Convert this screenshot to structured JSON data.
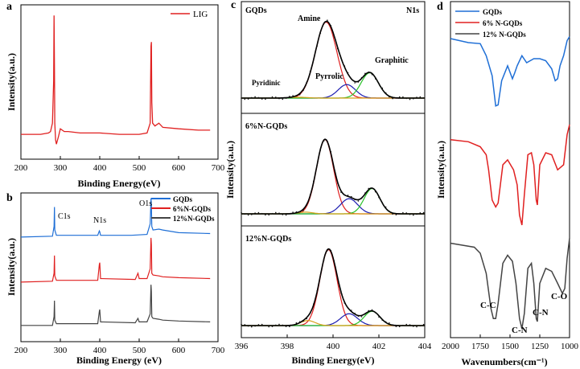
{
  "colors": {
    "red": "#e02020",
    "blue": "#1f6fd6",
    "black": "#1a1a1a",
    "gray": "#444444",
    "green": "#2bc22b",
    "navy": "#1c1cb0",
    "orange": "#d6a01a"
  },
  "chart_data": [
    {
      "panel": "a",
      "type": "line",
      "xlabel": "Binding Energy(eV)",
      "ylabel": "Intensity(a.u.)",
      "xlim": [
        200,
        700
      ],
      "xticks": [
        "200",
        "300",
        "400",
        "500",
        "600",
        "700"
      ],
      "legend": [
        "LIG"
      ],
      "legend_position": "top-right",
      "series": [
        {
          "name": "LIG",
          "color": "#e02020",
          "x": [
            200,
            250,
            270,
            275,
            280,
            283,
            284,
            285,
            286,
            288,
            290,
            295,
            300,
            310,
            320,
            350,
            380,
            400,
            450,
            500,
            520,
            528,
            530,
            531,
            532,
            534,
            540,
            550,
            560,
            600,
            650,
            680
          ],
          "y": [
            0.12,
            0.12,
            0.13,
            0.14,
            0.2,
            0.5,
            0.97,
            0.6,
            0.2,
            0.08,
            0.05,
            0.1,
            0.16,
            0.14,
            0.14,
            0.13,
            0.13,
            0.13,
            0.12,
            0.12,
            0.13,
            0.2,
            0.75,
            0.78,
            0.35,
            0.2,
            0.18,
            0.2,
            0.17,
            0.16,
            0.15,
            0.15
          ]
        }
      ]
    },
    {
      "panel": "b",
      "type": "line",
      "xlabel": "Binding Energy (eV)",
      "ylabel": "Intensity(a.u.)",
      "xlim": [
        200,
        700
      ],
      "xticks": [
        "200",
        "300",
        "400",
        "500",
        "600",
        "700"
      ],
      "annotations": [
        "C1s",
        "N1s",
        "O1s"
      ],
      "legend_position": "top-right",
      "series": [
        {
          "name": "GQDs",
          "color": "#1f6fd6",
          "offset": 2,
          "x": [
            200,
            280,
            284,
            285,
            286,
            290,
            300,
            395,
            399,
            400,
            402,
            480,
            520,
            528,
            530,
            531,
            532,
            535,
            550,
            560,
            600,
            680
          ],
          "y": [
            0,
            0.01,
            0.12,
            0.34,
            0.08,
            0.02,
            0.02,
            0.02,
            0.07,
            0.06,
            0.02,
            0.02,
            0.03,
            0.15,
            0.44,
            0.36,
            0.12,
            0.08,
            0.09,
            0.08,
            0.05,
            0.04
          ]
        },
        {
          "name": "6%N-GQDs",
          "color": "#e02020",
          "offset": 1,
          "x": [
            200,
            280,
            284,
            285,
            286,
            290,
            300,
            395,
            399,
            400,
            402,
            490,
            497,
            500,
            520,
            528,
            530,
            531,
            532,
            535,
            550,
            560,
            600,
            680
          ],
          "y": [
            0,
            0.01,
            0.1,
            0.3,
            0.07,
            0.02,
            0.02,
            0.02,
            0.2,
            0.22,
            0.04,
            0.03,
            0.1,
            0.04,
            0.04,
            0.15,
            0.5,
            0.42,
            0.1,
            0.08,
            0.07,
            0.06,
            0.05,
            0.04
          ]
        },
        {
          "name": "12%N-GQDs",
          "color": "#444444",
          "offset": 0,
          "x": [
            200,
            280,
            284,
            285,
            286,
            290,
            300,
            395,
            399,
            400,
            402,
            490,
            497,
            500,
            520,
            528,
            530,
            531,
            532,
            535,
            550,
            560,
            600,
            680
          ],
          "y": [
            0.02,
            0.02,
            0.12,
            0.3,
            0.08,
            0.04,
            0.04,
            0.04,
            0.18,
            0.2,
            0.06,
            0.05,
            0.1,
            0.06,
            0.06,
            0.15,
            0.48,
            0.4,
            0.12,
            0.1,
            0.09,
            0.08,
            0.07,
            0.06
          ]
        }
      ]
    },
    {
      "panel": "c",
      "type": "line",
      "xlabel": "Binding Energy(eV)",
      "ylabel": "Intensity(a.u.)",
      "xlim": [
        396,
        404
      ],
      "xticks": [
        "396",
        "398",
        "400",
        "402",
        "404"
      ],
      "subpanels": [
        {
          "title": "GQDs",
          "corner_label": "N1s",
          "peak_labels": [
            "Amine",
            "Pyridinic",
            "Pyrrolic",
            "Graphitic"
          ],
          "components": [
            {
              "color": "#e02020",
              "center": 399.7,
              "amp": 0.9,
              "width": 0.75
            },
            {
              "color": "#1c1cb0",
              "center": 400.6,
              "amp": 0.16,
              "width": 0.6
            },
            {
              "color": "#2bc22b",
              "center": 401.6,
              "amp": 0.3,
              "width": 0.6
            },
            {
              "color": "#d6a01a",
              "center": 398.5,
              "amp": 0.01,
              "width": 0.6
            }
          ]
        },
        {
          "title": "6%N-GQDs",
          "components": [
            {
              "color": "#e02020",
              "center": 399.65,
              "amp": 0.88,
              "width": 0.6
            },
            {
              "color": "#1c1cb0",
              "center": 400.7,
              "amp": 0.18,
              "width": 0.6
            },
            {
              "color": "#2bc22b",
              "center": 401.7,
              "amp": 0.3,
              "width": 0.55
            },
            {
              "color": "#d6a01a",
              "center": 398.8,
              "amp": 0.02,
              "width": 0.5
            }
          ]
        },
        {
          "title": "12%N-GQDs",
          "components": [
            {
              "color": "#e02020",
              "center": 399.8,
              "amp": 0.9,
              "width": 0.6
            },
            {
              "color": "#1c1cb0",
              "center": 400.7,
              "amp": 0.14,
              "width": 0.6
            },
            {
              "color": "#2bc22b",
              "center": 401.7,
              "amp": 0.17,
              "width": 0.55
            },
            {
              "color": "#d6a01a",
              "center": 398.9,
              "amp": 0.06,
              "width": 0.5
            }
          ]
        }
      ]
    },
    {
      "panel": "d",
      "type": "line",
      "xlabel": "Wavenumbers(cm⁻¹)",
      "ylabel": "Intensity(a.u.)",
      "xlim": [
        2000,
        1000
      ],
      "xticks": [
        "2000",
        "1750",
        "1500",
        "1250",
        "1000"
      ],
      "legend": [
        "GQDs",
        "6% N-GQDs",
        "12% N-GQDs"
      ],
      "legend_position": "top-left",
      "annotations": [
        "C-C",
        "C-N",
        "C-N",
        "C-O"
      ],
      "series": [
        {
          "name": "GQDs",
          "color": "#1f6fd6",
          "offset": 2,
          "x": [
            2000,
            1850,
            1750,
            1700,
            1650,
            1620,
            1600,
            1570,
            1520,
            1480,
            1460,
            1440,
            1400,
            1360,
            1300,
            1250,
            1200,
            1150,
            1120,
            1100,
            1080,
            1050,
            1020,
            1000
          ],
          "y": [
            0.72,
            0.68,
            0.67,
            0.55,
            0.35,
            0.05,
            0.06,
            0.3,
            0.45,
            0.32,
            0.38,
            0.45,
            0.55,
            0.48,
            0.52,
            0.52,
            0.5,
            0.42,
            0.3,
            0.32,
            0.45,
            0.55,
            0.7,
            0.74
          ]
        },
        {
          "name": "6% N-GQDs",
          "color": "#e02020",
          "offset": 1,
          "x": [
            2000,
            1850,
            1750,
            1700,
            1680,
            1650,
            1620,
            1600,
            1560,
            1520,
            1470,
            1440,
            1420,
            1400,
            1380,
            1350,
            1320,
            1300,
            1280,
            1270,
            1250,
            1200,
            1150,
            1100,
            1050,
            1020,
            1000
          ],
          "y": [
            0.85,
            0.83,
            0.78,
            0.7,
            0.55,
            0.25,
            0.18,
            0.22,
            0.6,
            0.65,
            0.55,
            0.4,
            0.1,
            0.0,
            0.3,
            0.7,
            0.72,
            0.6,
            0.25,
            0.2,
            0.6,
            0.72,
            0.7,
            0.55,
            0.6,
            0.9,
            1.0
          ]
        },
        {
          "name": "12% N-GQDs",
          "color": "#444444",
          "offset": 0,
          "x": [
            2000,
            1900,
            1800,
            1750,
            1700,
            1660,
            1640,
            1620,
            1600,
            1560,
            1520,
            1480,
            1450,
            1420,
            1400,
            1380,
            1350,
            1320,
            1300,
            1280,
            1270,
            1250,
            1200,
            1150,
            1100,
            1060,
            1040,
            1020,
            1000
          ],
          "y": [
            0.9,
            0.88,
            0.86,
            0.8,
            0.6,
            0.25,
            0.15,
            0.15,
            0.3,
            0.7,
            0.78,
            0.72,
            0.5,
            0.15,
            0.05,
            0.2,
            0.65,
            0.7,
            0.5,
            0.15,
            0.12,
            0.5,
            0.65,
            0.62,
            0.5,
            0.4,
            0.45,
            0.75,
            0.95
          ]
        }
      ]
    }
  ]
}
